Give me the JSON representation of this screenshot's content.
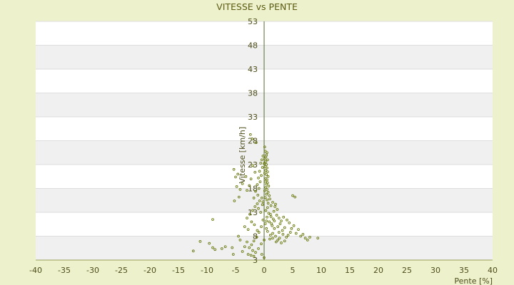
{
  "chart_data": {
    "type": "scatter",
    "title": "VITESSE vs PENTE",
    "xlabel": "Pente [%]",
    "ylabel": "Vitesse [km/h]",
    "xlim": [
      -40,
      40
    ],
    "ylim": [
      3,
      53
    ],
    "x_ticks": [
      "-40",
      "-35",
      "-30",
      "-25",
      "-20",
      "-15",
      "-10",
      "-5",
      "0",
      "5",
      "10",
      "15",
      "20",
      "25",
      "30",
      "35",
      "40"
    ],
    "y_ticks": [
      "53",
      "48",
      "43",
      "38",
      "33",
      "28",
      "23",
      "18",
      "13",
      "8",
      "3"
    ],
    "grid": "horizontal alternating bands",
    "colors": {
      "background": "#eef2cc",
      "band_light": "#ffffff",
      "band_dark": "#f0f0f0",
      "axis": "#556b2f",
      "point": "#6b7a10"
    },
    "series": [
      {
        "points": [
          [
            0.1,
            26.7
          ],
          [
            0.2,
            25.8
          ],
          [
            0.5,
            25.5
          ],
          [
            0.4,
            25.0
          ],
          [
            0.3,
            24.6
          ],
          [
            0.1,
            24.2
          ],
          [
            0.6,
            24.0
          ],
          [
            0.3,
            23.6
          ],
          [
            0.0,
            23.2
          ],
          [
            0.4,
            23.0
          ],
          [
            0.2,
            22.6
          ],
          [
            0.5,
            22.3
          ],
          [
            0.3,
            21.8
          ],
          [
            0.6,
            21.5
          ],
          [
            0.1,
            21.2
          ],
          [
            0.4,
            20.9
          ],
          [
            0.7,
            20.5
          ],
          [
            0.3,
            20.1
          ],
          [
            0.5,
            19.8
          ],
          [
            0.2,
            19.5
          ],
          [
            0.6,
            19.2
          ],
          [
            0.4,
            18.9
          ],
          [
            0.8,
            18.5
          ],
          [
            0.3,
            18.2
          ],
          [
            0.5,
            17.8
          ],
          [
            0.1,
            17.5
          ],
          [
            0.7,
            17.2
          ],
          [
            0.4,
            16.8
          ],
          [
            0.9,
            16.5
          ],
          [
            0.2,
            16.1
          ],
          [
            -0.2,
            24.8
          ],
          [
            -0.4,
            24.0
          ],
          [
            -0.6,
            23.3
          ],
          [
            -0.3,
            22.4
          ],
          [
            -0.8,
            21.6
          ],
          [
            -0.5,
            20.7
          ],
          [
            -1.0,
            20.2
          ],
          [
            -0.7,
            19.4
          ],
          [
            -1.2,
            18.8
          ],
          [
            -0.9,
            18.0
          ],
          [
            -1.5,
            17.4
          ],
          [
            -1.1,
            16.6
          ],
          [
            -1.8,
            16.0
          ],
          [
            -2.0,
            22.8
          ],
          [
            -1.6,
            21.4
          ],
          [
            -2.3,
            20.0
          ],
          [
            -2.6,
            18.6
          ],
          [
            -3.0,
            17.6
          ],
          [
            -3.2,
            20.5
          ],
          [
            -3.8,
            19.0
          ],
          [
            -4.2,
            17.8
          ],
          [
            -4.6,
            21.0
          ],
          [
            -5.3,
            22.0
          ],
          [
            -5.0,
            20.4
          ],
          [
            -4.8,
            18.4
          ],
          [
            -4.4,
            16.2
          ],
          [
            -5.2,
            15.4
          ],
          [
            -2.4,
            29.3
          ],
          [
            -2.1,
            28.4
          ],
          [
            -1.4,
            27.6
          ],
          [
            -0.4,
            16.0
          ],
          [
            -0.8,
            15.4
          ],
          [
            -1.2,
            14.8
          ],
          [
            -0.2,
            15.2
          ],
          [
            0.5,
            15.6
          ],
          [
            1.0,
            15.8
          ],
          [
            1.5,
            15.1
          ],
          [
            2.0,
            14.7
          ],
          [
            1.2,
            14.4
          ],
          [
            0.7,
            14.9
          ],
          [
            -1.6,
            14.2
          ],
          [
            -2.0,
            13.4
          ],
          [
            -2.5,
            12.6
          ],
          [
            -3.0,
            11.8
          ],
          [
            -2.2,
            11.0
          ],
          [
            -1.7,
            10.4
          ],
          [
            -3.4,
            10.0
          ],
          [
            -2.8,
            9.4
          ],
          [
            -1.2,
            9.2
          ],
          [
            -0.6,
            13.0
          ],
          [
            0.3,
            13.4
          ],
          [
            0.8,
            12.8
          ],
          [
            1.2,
            12.1
          ],
          [
            1.6,
            11.6
          ],
          [
            2.2,
            12.4
          ],
          [
            2.6,
            11.8
          ],
          [
            3.0,
            11.2
          ],
          [
            3.4,
            12.0
          ],
          [
            2.8,
            10.6
          ],
          [
            2.4,
            10.0
          ],
          [
            1.8,
            9.6
          ],
          [
            1.4,
            10.2
          ],
          [
            3.6,
            9.8
          ],
          [
            4.0,
            11.4
          ],
          [
            4.4,
            10.8
          ],
          [
            3.2,
            9.2
          ],
          [
            4.8,
            9.6
          ],
          [
            5.2,
            10.2
          ],
          [
            4.6,
            8.8
          ],
          [
            4.2,
            8.2
          ],
          [
            5.6,
            8.6
          ],
          [
            6.0,
            9.4
          ],
          [
            6.4,
            8.0
          ],
          [
            6.8,
            8.4
          ],
          [
            7.2,
            7.6
          ],
          [
            7.6,
            7.2
          ],
          [
            8.0,
            7.8
          ],
          [
            9.4,
            7.6
          ],
          [
            5.0,
            16.5
          ],
          [
            5.4,
            16.2
          ],
          [
            3.6,
            7.0
          ],
          [
            3.0,
            6.6
          ],
          [
            2.4,
            7.2
          ],
          [
            2.0,
            8.0
          ],
          [
            1.5,
            8.6
          ],
          [
            1.0,
            7.4
          ],
          [
            0.6,
            9.0
          ],
          [
            0.2,
            10.6
          ],
          [
            -0.2,
            11.4
          ],
          [
            -0.5,
            10.0
          ],
          [
            -0.9,
            8.8
          ],
          [
            -1.3,
            7.8
          ],
          [
            -1.8,
            7.0
          ],
          [
            -2.2,
            6.2
          ],
          [
            -2.6,
            5.6
          ],
          [
            -2.0,
            5.0
          ],
          [
            -1.5,
            4.6
          ],
          [
            -1.0,
            5.4
          ],
          [
            -0.5,
            6.4
          ],
          [
            0.0,
            7.2
          ],
          [
            -3.0,
            6.8
          ],
          [
            -3.4,
            5.8
          ],
          [
            -4.2,
            7.2
          ],
          [
            -4.5,
            8.0
          ],
          [
            -3.8,
            4.8
          ],
          [
            -2.8,
            4.2
          ],
          [
            -2.3,
            4.0
          ],
          [
            -1.8,
            3.8
          ],
          [
            -0.4,
            4.2
          ],
          [
            0.0,
            3.5
          ],
          [
            -9.0,
            11.5
          ],
          [
            -11.2,
            6.9
          ],
          [
            -12.4,
            4.9
          ],
          [
            -9.6,
            6.5
          ],
          [
            -9.0,
            5.6
          ],
          [
            -8.6,
            5.2
          ],
          [
            -7.4,
            5.4
          ],
          [
            -6.8,
            5.8
          ],
          [
            -5.4,
            4.2
          ],
          [
            -5.6,
            5.6
          ],
          [
            0.5,
            12.0
          ],
          [
            0.9,
            11.0
          ],
          [
            1.3,
            10.6
          ],
          [
            0.4,
            9.6
          ],
          [
            1.7,
            13.2
          ],
          [
            2.3,
            13.6
          ],
          [
            1.9,
            14.2
          ],
          [
            0.6,
            14.0
          ],
          [
            -0.3,
            14.6
          ],
          [
            -1.0,
            13.8
          ],
          [
            1.1,
            8.2
          ],
          [
            1.5,
            7.6
          ],
          [
            2.1,
            6.8
          ],
          [
            2.7,
            7.6
          ],
          [
            3.3,
            8.4
          ],
          [
            3.9,
            7.8
          ],
          [
            2.6,
            8.8
          ],
          [
            1.8,
            11.2
          ],
          [
            1.1,
            12.6
          ],
          [
            0.4,
            11.2
          ]
        ]
      }
    ]
  }
}
